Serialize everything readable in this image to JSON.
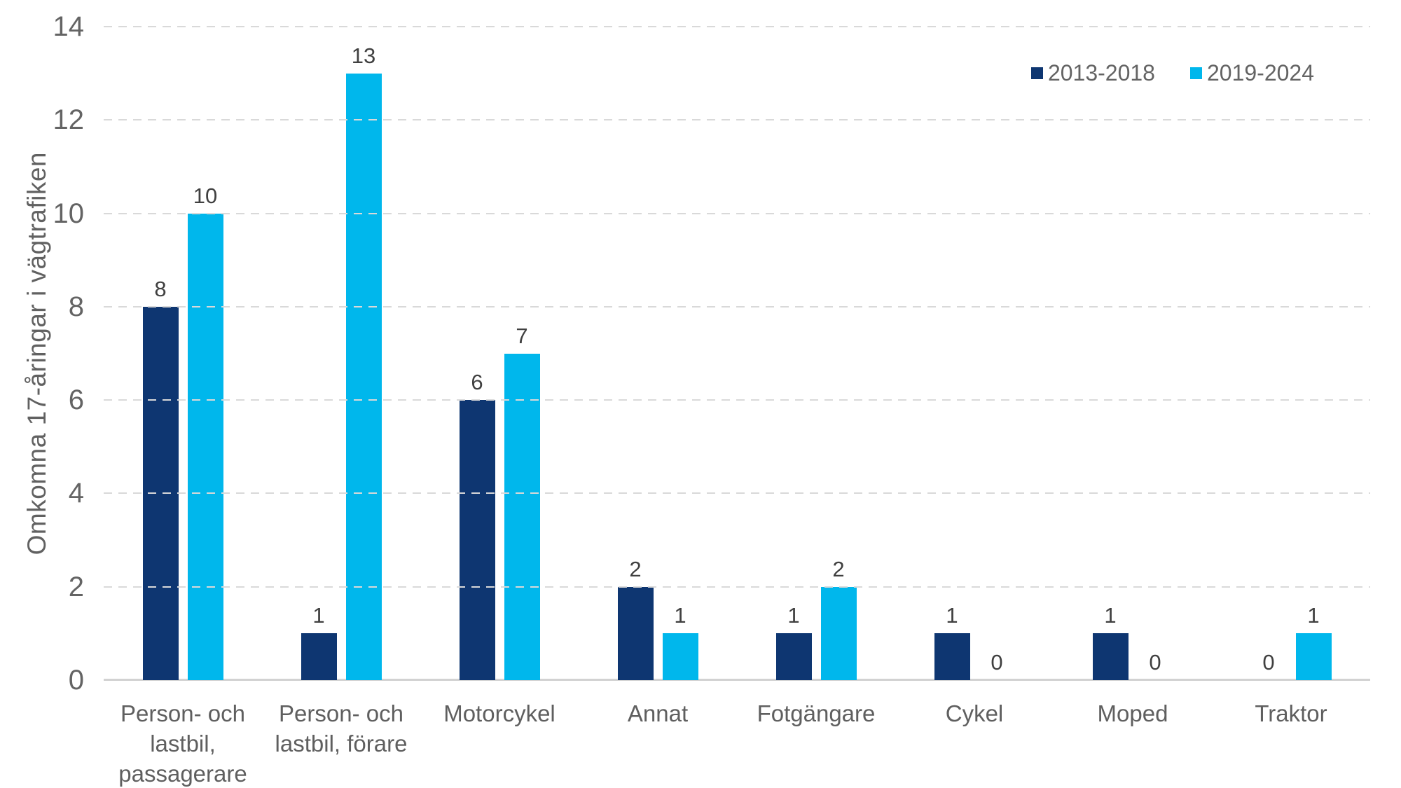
{
  "chart_data": {
    "type": "bar",
    "title": "",
    "xlabel": "",
    "ylabel": "Omkomna 17-åringar i vägtrafiken",
    "ylim": [
      0,
      14
    ],
    "yticks": [
      0,
      2,
      4,
      6,
      8,
      10,
      12,
      14
    ],
    "grid": "horizontal-dashed",
    "legend_position": "top-right",
    "bar_value_labels": true,
    "categories": [
      "Person- och\nlastbil,\npassagerare",
      "Person- och\nlastbil, förare",
      "Motorcykel",
      "Annat",
      "Fotgängare",
      "Cykel",
      "Moped",
      "Traktor"
    ],
    "series": [
      {
        "name": "2013-2018",
        "color": "#0E3671",
        "values": [
          8,
          1,
          6,
          2,
          1,
          1,
          1,
          0
        ]
      },
      {
        "name": "2019-2024",
        "color": "#00B7EC",
        "values": [
          10,
          13,
          7,
          1,
          2,
          0,
          0,
          1
        ]
      }
    ],
    "colors": {
      "gridline": "#D9D9D9",
      "axis_line": "#D2D2D2",
      "tick_text": "#646464",
      "category_text": "#5F5F5F",
      "data_label_text": "#404040",
      "background": "#FFFFFF"
    }
  }
}
